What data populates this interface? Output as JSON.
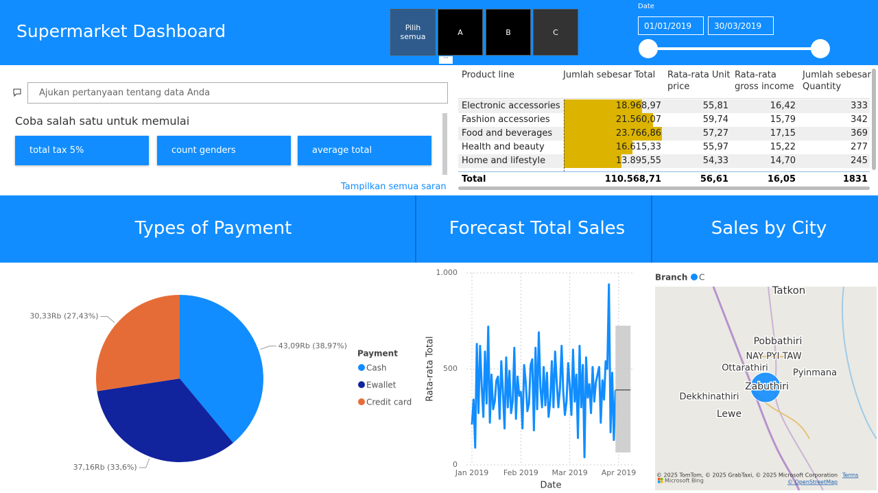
{
  "header": {
    "title": "Supermarket Dashboard"
  },
  "slicer": {
    "options": [
      "Pilih semua",
      "A",
      "B",
      "C"
    ]
  },
  "date_filter": {
    "label": "Date",
    "start": "01/01/2019",
    "end": "30/03/2019"
  },
  "qna": {
    "placeholder": "Ajukan pertanyaan tentang data Anda",
    "prompt": "Coba salah satu untuk memulai",
    "suggestions": [
      "total tax 5%",
      "count genders",
      "average total"
    ],
    "more": "Tampilkan semua saran"
  },
  "table": {
    "columns": [
      "Product line",
      "Jumlah sebesar Total",
      "Rata-rata Unit price",
      "Rata-rata gross income",
      "Jumlah sebesar Quantity"
    ],
    "bar_color": "#dcb400",
    "rows": [
      {
        "product_line": "Electronic accessories",
        "total": 18968.97,
        "total_label": "18.968,97",
        "unit_price": "55,81",
        "gross_income": "16,42",
        "quantity": 333
      },
      {
        "product_line": "Fashion accessories",
        "total": 21560.07,
        "total_label": "21.560,07",
        "unit_price": "59,74",
        "gross_income": "15,79",
        "quantity": 342
      },
      {
        "product_line": "Food and beverages",
        "total": 23766.86,
        "total_label": "23.766,86",
        "unit_price": "57,27",
        "gross_income": "17,15",
        "quantity": 369
      },
      {
        "product_line": "Health and beauty",
        "total": 16615.33,
        "total_label": "16.615,33",
        "unit_price": "55,97",
        "gross_income": "15,22",
        "quantity": 277
      },
      {
        "product_line": "Home and lifestyle",
        "total": 13895.55,
        "total_label": "13.895,55",
        "unit_price": "54,33",
        "gross_income": "14,70",
        "quantity": 245
      }
    ],
    "total": {
      "label": "Total",
      "total": "110.568,71",
      "unit_price": "56,61",
      "gross_income": "16,05",
      "quantity": 1831
    }
  },
  "sections": [
    "Types of Payment",
    "Forecast Total Sales",
    "Sales by City"
  ],
  "chart_data": [
    {
      "type": "pie",
      "legend_title": "Payment",
      "categories": [
        "Cash",
        "Ewallet",
        "Credit card"
      ],
      "values": [
        43.09,
        37.16,
        30.33
      ],
      "value_labels": [
        "43,09Rb (38,97%)",
        "37,16Rb (33,6%)",
        "30,33Rb (27,43%)"
      ],
      "colors": [
        "#118DFF",
        "#12239E",
        "#E66C37"
      ]
    },
    {
      "type": "line",
      "x_label": "Date",
      "y_label": "Rata-rata Total",
      "color": "#118DFF",
      "grid": true,
      "xlim": [
        "2019-01",
        "2019-04"
      ],
      "xticks": [
        {
          "value": "2019-01",
          "label": "Jan 2019"
        },
        {
          "value": "2019-02",
          "label": "Feb 2019"
        },
        {
          "value": "2019-03",
          "label": "Mar 2019"
        },
        {
          "value": "2019-04",
          "label": "Apr 2019"
        }
      ],
      "ylim": [
        0,
        1000
      ],
      "yticks": [
        0,
        500,
        {
          "value": 1000,
          "label": "1.000"
        }
      ],
      "values": [
        210,
        340,
        90,
        630,
        270,
        620,
        410,
        250,
        590,
        320,
        720,
        220,
        470,
        290,
        330,
        440,
        460,
        240,
        540,
        380,
        190,
        560,
        300,
        490,
        270,
        330,
        610,
        240,
        460,
        360,
        380,
        190,
        520,
        430,
        280,
        320,
        520,
        550,
        180,
        610,
        290,
        690,
        400,
        300,
        510,
        310,
        480,
        250,
        330,
        540,
        300,
        590,
        430,
        300,
        400,
        620,
        380,
        260,
        330,
        530,
        410,
        260,
        600,
        330,
        470,
        140,
        620,
        300,
        520,
        40,
        560,
        350,
        420,
        270,
        510,
        330,
        430,
        470,
        510,
        220,
        440,
        340,
        540,
        500,
        940,
        170,
        480,
        130,
        390
      ],
      "forecast": {
        "value": 390,
        "lower": 65,
        "upper": 725
      }
    }
  ],
  "map": {
    "legend_title": "Branch",
    "series": [
      {
        "name": "C",
        "color": "#118DFF"
      }
    ],
    "places": [
      "Tatkon",
      "Pobbathiri",
      "NAY PYI TAW",
      "Ottarathiri",
      "Pyinmana",
      "Zabuthiri",
      "Dekkhinathiri",
      "Lewe"
    ],
    "attribution": "© 2025 TomTom, © 2025 GrabTaxi, © 2025 Microsoft Corporation",
    "terms": "Terms",
    "osm": "© OpenStreetMap",
    "provider": "Microsoft Bing"
  }
}
